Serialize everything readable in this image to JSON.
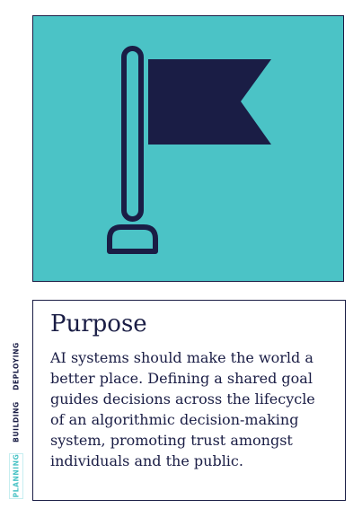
{
  "illustration": {
    "icon": "flag-icon",
    "background_color": "#4bc3c6",
    "icon_color": "#1a1d45"
  },
  "card": {
    "title": "Purpose",
    "body": "AI systems should make the world a better place. Defining a shared goal guides decisions across the lifecycle of an algorithmic decision-making system, promoting trust amongst individuals and the public."
  },
  "side_tabs": {
    "deploying": "DEPLOYING",
    "building": "BUILDING",
    "planning": "PLANNING",
    "active": "PLANNING"
  }
}
